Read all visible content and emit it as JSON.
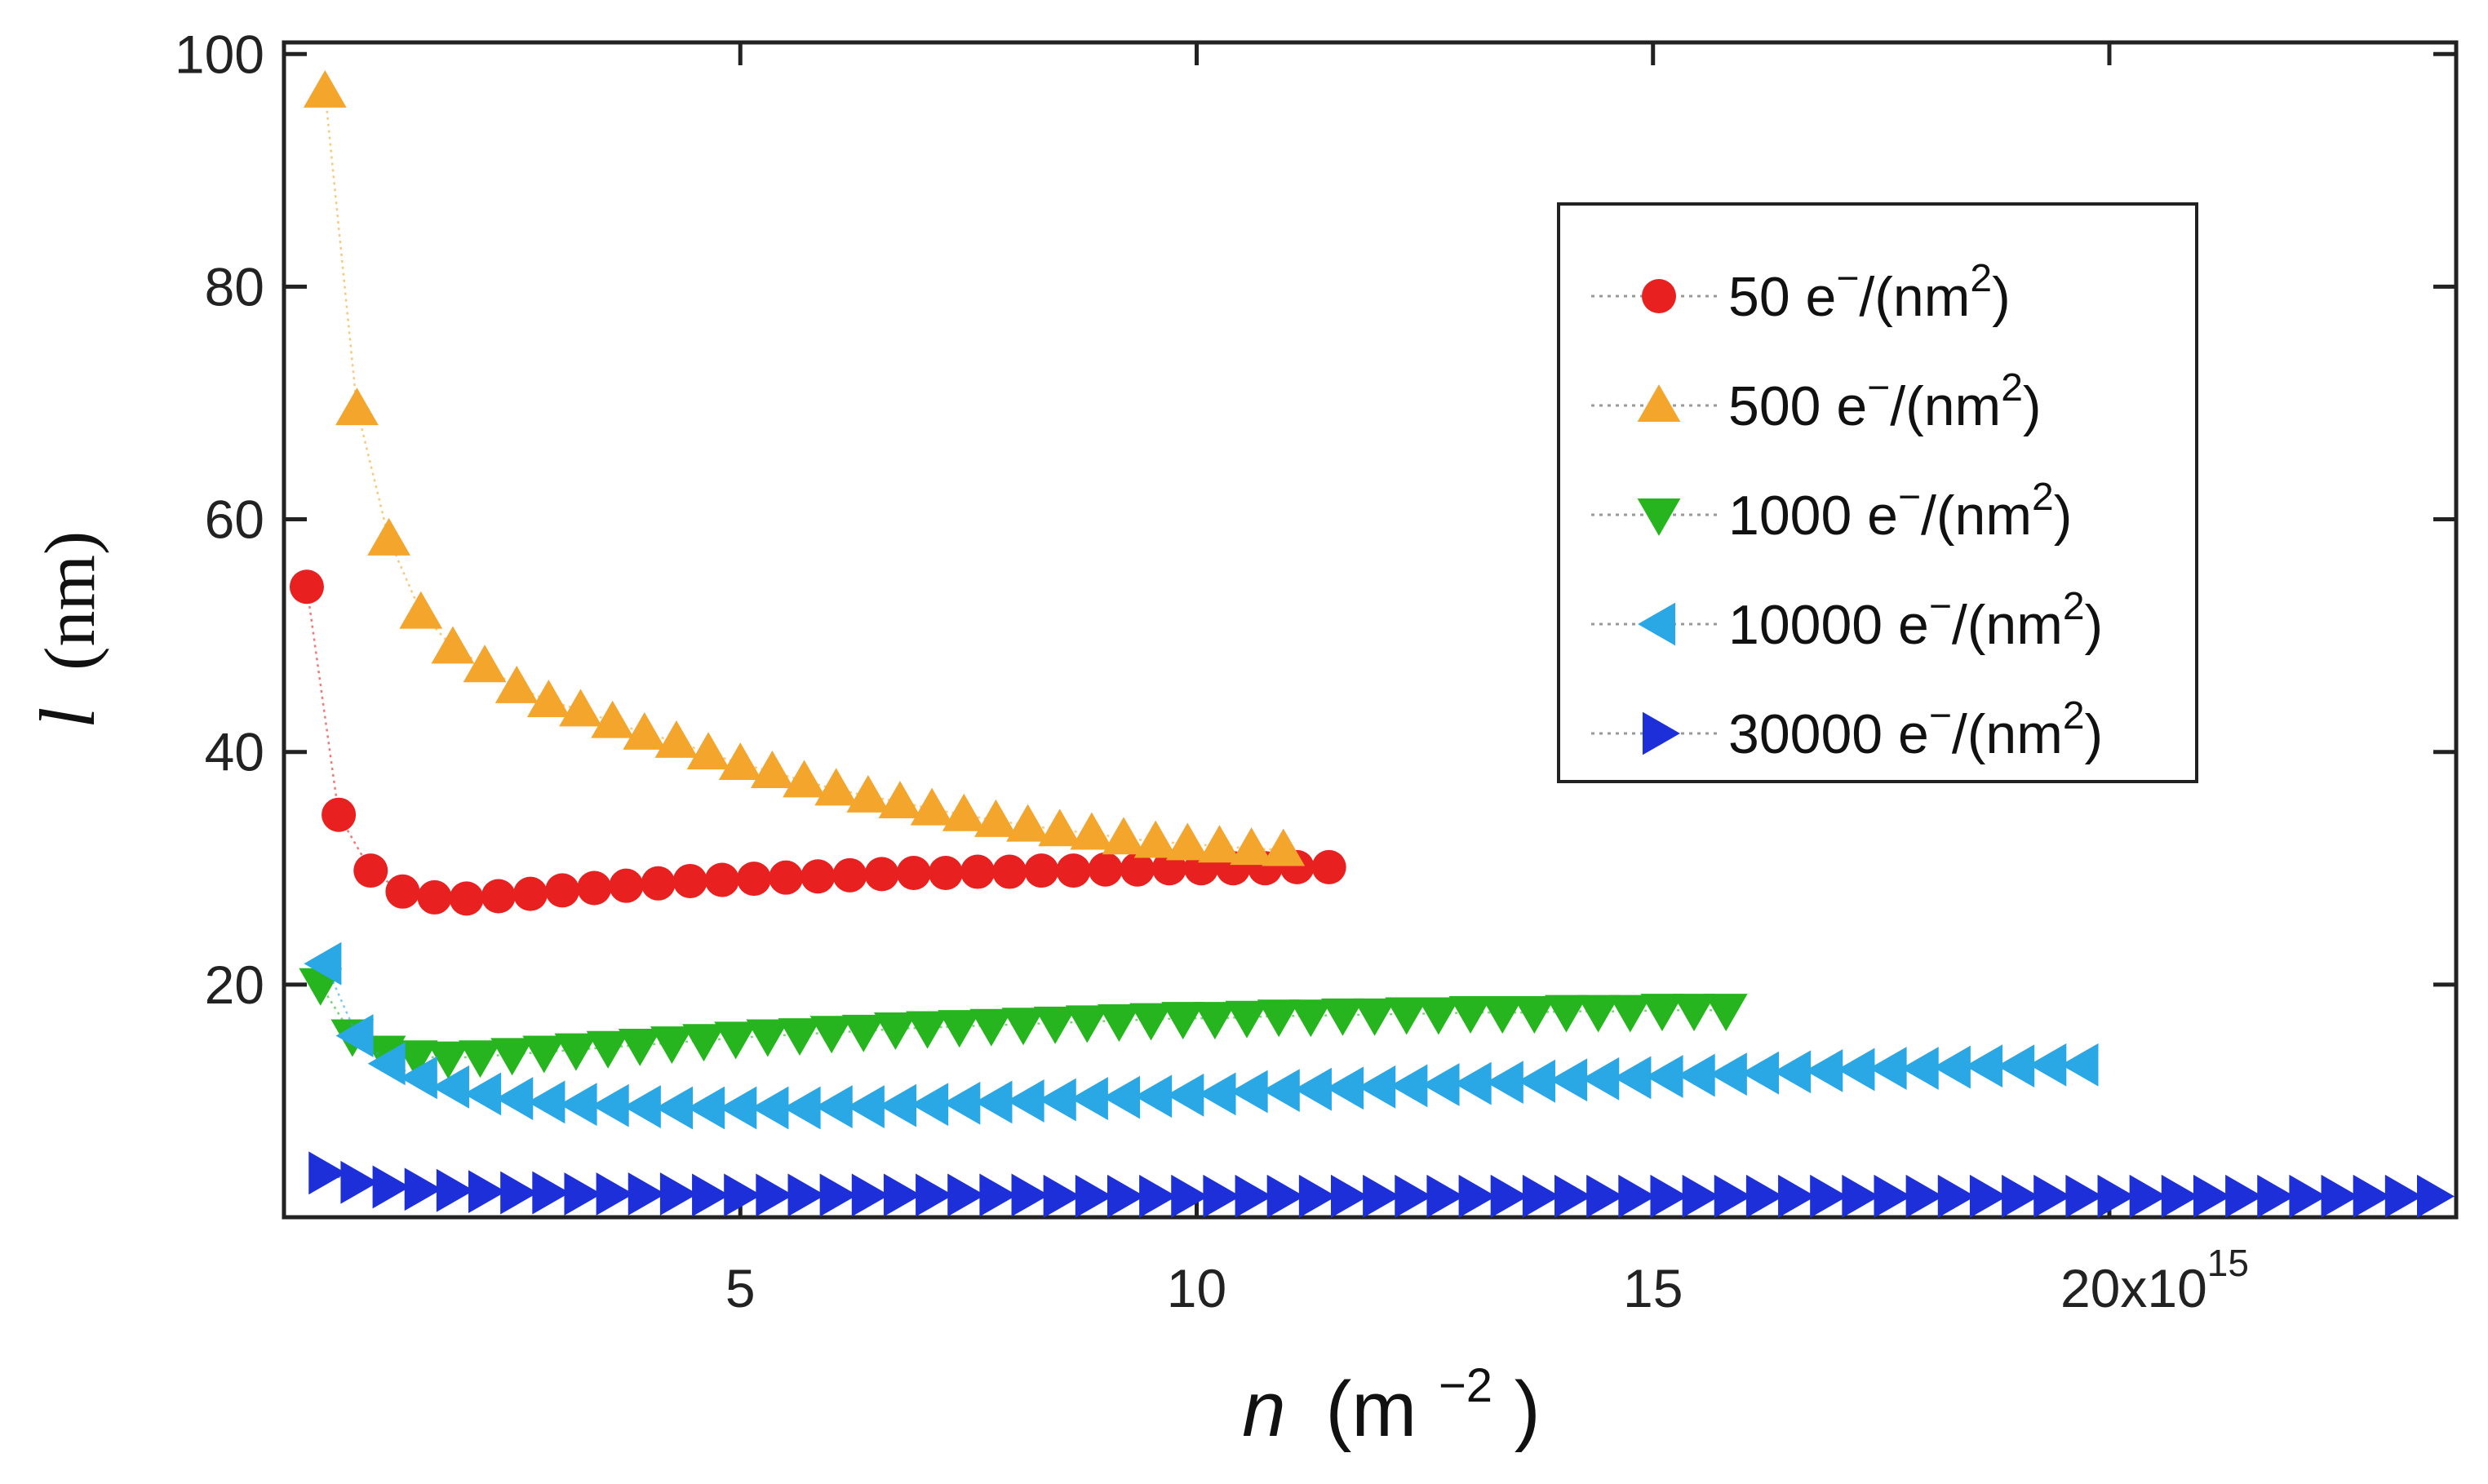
{
  "chart_data": {
    "type": "scatter",
    "x_axis": {
      "label_var": "n",
      "label_unit": "(m",
      "label_exp": "−2",
      "label_close": ")",
      "ticks": [
        5,
        10,
        15,
        20
      ],
      "tick_labels": [
        "5",
        "10",
        "15",
        "20x10"
      ],
      "last_tick_exp": "15",
      "range": [
        0,
        23.8
      ]
    },
    "y_axis": {
      "label_var": "l",
      "label_unit": "(nm)",
      "ticks": [
        20,
        40,
        60,
        80,
        100
      ],
      "tick_labels": [
        "20",
        "40",
        "60",
        "80",
        "100"
      ],
      "range": [
        0,
        101
      ]
    },
    "legend_position": "top-right",
    "series": [
      {
        "name": "50 e⁻/(nm²)",
        "label_num": "50",
        "color": "#e8201f",
        "marker": "circle",
        "x": [
          0.25,
          0.6,
          0.95,
          1.3,
          1.65,
          2.0,
          2.35,
          2.7,
          3.05,
          3.4,
          3.75,
          4.1,
          4.45,
          4.8,
          5.15,
          5.5,
          5.85,
          6.2,
          6.55,
          6.9,
          7.25,
          7.6,
          7.95,
          8.3,
          8.65,
          9.0,
          9.35,
          9.7,
          10.05,
          10.4,
          10.75,
          11.1,
          11.45
        ],
        "y": [
          54.2,
          34.6,
          29.8,
          28.0,
          27.5,
          27.4,
          27.6,
          27.8,
          28.1,
          28.3,
          28.5,
          28.7,
          28.9,
          29.0,
          29.1,
          29.2,
          29.3,
          29.4,
          29.5,
          29.6,
          29.6,
          29.7,
          29.7,
          29.8,
          29.8,
          29.9,
          29.9,
          30.0,
          30.0,
          30.0,
          30.0,
          30.1,
          30.1
        ]
      },
      {
        "name": "500 e⁻/(nm²)",
        "label_num": "500",
        "color": "#f4a52b",
        "marker": "triangle-up",
        "x": [
          0.45,
          0.8,
          1.15,
          1.5,
          1.85,
          2.2,
          2.55,
          2.9,
          3.25,
          3.6,
          3.95,
          4.3,
          4.65,
          5.0,
          5.35,
          5.7,
          6.05,
          6.4,
          6.75,
          7.1,
          7.45,
          7.8,
          8.15,
          8.5,
          8.85,
          9.2,
          9.55,
          9.9,
          10.25,
          10.6,
          10.95
        ],
        "y": [
          96.8,
          69.5,
          58.3,
          52.0,
          49.0,
          47.4,
          45.6,
          44.4,
          43.6,
          42.6,
          41.6,
          40.9,
          39.9,
          39.0,
          38.3,
          37.5,
          36.8,
          36.2,
          35.7,
          35.1,
          34.6,
          34.1,
          33.7,
          33.3,
          33.0,
          32.6,
          32.3,
          32.1,
          31.9,
          31.7,
          31.6
        ]
      },
      {
        "name": "1000 e⁻/(nm²)",
        "label_num": "1000",
        "color": "#27b51f",
        "marker": "triangle-down",
        "x": [
          0.4,
          0.75,
          1.1,
          1.45,
          1.8,
          2.15,
          2.5,
          2.85,
          3.2,
          3.55,
          3.9,
          4.25,
          4.6,
          4.95,
          5.3,
          5.65,
          6.0,
          6.35,
          6.7,
          7.05,
          7.4,
          7.75,
          8.1,
          8.45,
          8.8,
          9.15,
          9.5,
          9.85,
          10.2,
          10.55,
          10.9,
          11.25,
          11.6,
          11.95,
          12.3,
          12.65,
          13.0,
          13.35,
          13.7,
          14.05,
          14.4,
          14.75,
          15.1,
          15.45,
          15.8
        ],
        "y": [
          20.0,
          15.6,
          14.2,
          13.8,
          13.7,
          13.8,
          14.0,
          14.2,
          14.4,
          14.6,
          14.8,
          15.0,
          15.2,
          15.4,
          15.6,
          15.7,
          15.9,
          16.0,
          16.2,
          16.3,
          16.4,
          16.5,
          16.6,
          16.7,
          16.8,
          16.9,
          17.0,
          17.1,
          17.1,
          17.2,
          17.3,
          17.3,
          17.4,
          17.4,
          17.5,
          17.5,
          17.6,
          17.6,
          17.6,
          17.7,
          17.7,
          17.7,
          17.8,
          17.8,
          17.8
        ]
      },
      {
        "name": "10000 e⁻/(nm²)",
        "label_num": "10000",
        "color": "#2aa7e5",
        "marker": "triangle-left",
        "x": [
          0.45,
          0.8,
          1.15,
          1.5,
          1.85,
          2.2,
          2.55,
          2.9,
          3.25,
          3.6,
          3.95,
          4.3,
          4.65,
          5.0,
          5.35,
          5.7,
          6.05,
          6.4,
          6.75,
          7.1,
          7.45,
          7.8,
          8.15,
          8.5,
          8.85,
          9.2,
          9.55,
          9.9,
          10.25,
          10.6,
          10.95,
          11.3,
          11.65,
          12.0,
          12.35,
          12.7,
          13.05,
          13.4,
          13.75,
          14.1,
          14.45,
          14.8,
          15.15,
          15.5,
          15.85,
          16.2,
          16.55,
          16.9,
          17.25,
          17.6,
          17.95,
          18.3,
          18.65,
          19.0,
          19.35,
          19.7
        ],
        "y": [
          21.8,
          15.6,
          13.2,
          12.0,
          11.2,
          10.6,
          10.2,
          9.9,
          9.7,
          9.6,
          9.5,
          9.4,
          9.4,
          9.4,
          9.4,
          9.4,
          9.5,
          9.5,
          9.6,
          9.7,
          9.8,
          9.9,
          10.0,
          10.1,
          10.2,
          10.3,
          10.4,
          10.5,
          10.6,
          10.8,
          10.9,
          11.0,
          11.1,
          11.2,
          11.3,
          11.4,
          11.5,
          11.6,
          11.7,
          11.8,
          11.9,
          12.0,
          12.1,
          12.2,
          12.3,
          12.4,
          12.5,
          12.6,
          12.7,
          12.8,
          12.8,
          12.9,
          13.0,
          13.0,
          13.1,
          13.1
        ]
      },
      {
        "name": "30000 e⁻/(nm²)",
        "label_num": "30000",
        "color": "#1c2fd9",
        "marker": "triangle-right",
        "x": [
          0.45,
          0.8,
          1.15,
          1.5,
          1.85,
          2.2,
          2.55,
          2.9,
          3.25,
          3.6,
          3.95,
          4.3,
          4.65,
          5.0,
          5.35,
          5.7,
          6.05,
          6.4,
          6.75,
          7.1,
          7.45,
          7.8,
          8.15,
          8.5,
          8.85,
          9.2,
          9.55,
          9.9,
          10.25,
          10.6,
          10.95,
          11.3,
          11.65,
          12.0,
          12.35,
          12.7,
          13.05,
          13.4,
          13.75,
          14.1,
          14.45,
          14.8,
          15.15,
          15.5,
          15.85,
          16.2,
          16.55,
          16.9,
          17.25,
          17.6,
          17.95,
          18.3,
          18.65,
          19.0,
          19.35,
          19.7,
          20.05,
          20.4,
          20.75,
          21.1,
          21.45,
          21.8,
          22.15,
          22.5,
          22.85,
          23.2,
          23.55
        ],
        "y": [
          3.8,
          3.0,
          2.6,
          2.4,
          2.3,
          2.2,
          2.1,
          2.1,
          2.0,
          2.0,
          2.0,
          2.0,
          1.9,
          1.9,
          1.9,
          1.9,
          1.9,
          1.9,
          1.9,
          1.9,
          1.9,
          1.9,
          1.9,
          1.8,
          1.8,
          1.8,
          1.8,
          1.8,
          1.8,
          1.8,
          1.8,
          1.8,
          1.8,
          1.8,
          1.8,
          1.8,
          1.8,
          1.8,
          1.8,
          1.8,
          1.8,
          1.8,
          1.8,
          1.8,
          1.8,
          1.8,
          1.8,
          1.8,
          1.8,
          1.8,
          1.8,
          1.8,
          1.8,
          1.8,
          1.8,
          1.8,
          1.8,
          1.8,
          1.8,
          1.8,
          1.8,
          1.8,
          1.8,
          1.8,
          1.8,
          1.8,
          1.8
        ]
      }
    ]
  }
}
